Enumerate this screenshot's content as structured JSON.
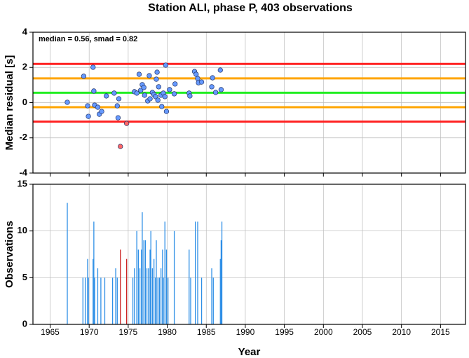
{
  "chart_data": [
    {
      "type": "scatter",
      "title": "Station ALI, phase P, 403 observations",
      "ylabel": "Median residual [s]",
      "annotation": "median = 0.56, smad = 0.82",
      "xlim": [
        1962.8,
        2018.2
      ],
      "ylim": [
        -4,
        4
      ],
      "yticks": [
        -4,
        -2,
        0,
        2,
        4
      ],
      "grid": true,
      "hlines": [
        {
          "value": 2.2,
          "color": "#ff2020"
        },
        {
          "value": 1.38,
          "color": "#ffa500"
        },
        {
          "value": 0.56,
          "color": "#22ee22"
        },
        {
          "value": -0.26,
          "color": "#ffa500"
        },
        {
          "value": -1.08,
          "color": "#ff2020"
        }
      ],
      "x": [
        1967.2,
        1969.3,
        1969.8,
        1969.9,
        1970.5,
        1970.6,
        1970.7,
        1971.1,
        1971.3,
        1971.6,
        1972.2,
        1973.2,
        1973.6,
        1973.8,
        1973.7,
        1974.0,
        1974.8,
        1975.8,
        1976.1,
        1976.4,
        1976.6,
        1976.8,
        1977.0,
        1977.1,
        1977.5,
        1977.7,
        1977.8,
        1978.1,
        1978.3,
        1978.5,
        1978.6,
        1978.7,
        1978.9,
        1978.8,
        1979.2,
        1979.3,
        1979.5,
        1979.7,
        1979.8,
        1979.9,
        1980.3,
        1981.0,
        1980.9,
        1982.8,
        1982.9,
        1983.5,
        1983.7,
        1983.9,
        1984.0,
        1984.4,
        1985.8,
        1985.7,
        1986.2,
        1986.8,
        1986.9
      ],
      "values": [
        0.02,
        1.5,
        -0.18,
        -0.78,
        2.01,
        0.66,
        -0.14,
        -0.26,
        -0.66,
        -0.5,
        0.38,
        0.54,
        -0.18,
        0.22,
        -0.86,
        -2.49,
        -1.18,
        0.62,
        0.54,
        1.61,
        0.7,
        1.02,
        0.86,
        0.42,
        0.1,
        1.53,
        0.22,
        0.58,
        0.46,
        0.34,
        1.33,
        1.73,
        0.9,
        0.14,
        0.42,
        -0.22,
        0.54,
        0.34,
        2.13,
        -0.5,
        0.74,
        1.06,
        0.5,
        0.54,
        0.38,
        1.77,
        1.61,
        1.37,
        1.13,
        1.17,
        1.41,
        0.9,
        0.58,
        1.85,
        0.74
      ],
      "colors": [
        "#6699ff",
        "#6699ff",
        "#6699ff",
        "#6699ff",
        "#6699ff",
        "#6699ff",
        "#6699ff",
        "#6699ff",
        "#6699ff",
        "#6699ff",
        "#6699ff",
        "#6699ff",
        "#6699ff",
        "#6699ff",
        "#6699ff",
        "#ff6666",
        "#ff6666",
        "#6699ff",
        "#6699ff",
        "#6699ff",
        "#6699ff",
        "#6699ff",
        "#6699ff",
        "#6699ff",
        "#6699ff",
        "#6699ff",
        "#6699ff",
        "#6699ff",
        "#6699ff",
        "#6699ff",
        "#6699ff",
        "#6699ff",
        "#6699ff",
        "#6699ff",
        "#6699ff",
        "#6699ff",
        "#6699ff",
        "#6699ff",
        "#6699ff",
        "#6699ff",
        "#6699ff",
        "#6699ff",
        "#6699ff",
        "#6699ff",
        "#6699ff",
        "#6699ff",
        "#6699ff",
        "#6699ff",
        "#6699ff",
        "#6699ff",
        "#6699ff",
        "#6699ff",
        "#6699ff",
        "#6699ff",
        "#6699ff"
      ]
    },
    {
      "type": "bar",
      "xlabel": "Year",
      "ylabel": "Observations",
      "xlim": [
        1962.8,
        2018.2
      ],
      "xticks": [
        1965,
        1970,
        1975,
        1980,
        1985,
        1990,
        1995,
        2000,
        2005,
        2010,
        2015
      ],
      "ylim": [
        0,
        15
      ],
      "yticks": [
        0,
        5,
        10,
        15
      ],
      "grid": true,
      "x": [
        1967.2,
        1969.2,
        1969.5,
        1969.8,
        1969.9,
        1970.5,
        1970.6,
        1970.7,
        1971.1,
        1971.5,
        1972.0,
        1973.0,
        1973.4,
        1973.6,
        1974.0,
        1974.8,
        1975.6,
        1975.8,
        1976.1,
        1976.3,
        1976.5,
        1976.7,
        1976.8,
        1977.0,
        1977.2,
        1977.4,
        1977.6,
        1977.8,
        1977.9,
        1978.1,
        1978.3,
        1978.5,
        1978.6,
        1978.8,
        1979.0,
        1979.2,
        1979.4,
        1979.5,
        1979.7,
        1979.9,
        1980.1,
        1980.9,
        1982.8,
        1983.0,
        1983.6,
        1983.9,
        1984.4,
        1985.7,
        1985.9,
        1986.8,
        1986.9,
        1987.0
      ],
      "values": [
        13,
        5,
        5,
        7,
        5,
        7,
        11,
        5,
        6,
        5,
        5,
        5,
        6,
        5,
        8,
        7,
        5,
        6,
        10,
        8,
        6,
        8,
        12,
        9,
        9,
        6,
        6,
        8,
        10,
        6,
        7,
        5,
        9,
        5,
        5,
        6,
        8,
        5,
        11,
        8,
        5,
        10,
        8,
        5,
        11,
        11,
        5,
        6,
        5,
        7,
        9,
        11
      ],
      "colors": [
        "#2e8fe6",
        "#2e8fe6",
        "#2e8fe6",
        "#2e8fe6",
        "#2e8fe6",
        "#2e8fe6",
        "#2e8fe6",
        "#2e8fe6",
        "#2e8fe6",
        "#2e8fe6",
        "#2e8fe6",
        "#2e8fe6",
        "#2e8fe6",
        "#2e8fe6",
        "#cc2222",
        "#cc2222",
        "#2e8fe6",
        "#2e8fe6",
        "#2e8fe6",
        "#2e8fe6",
        "#2e8fe6",
        "#2e8fe6",
        "#2e8fe6",
        "#2e8fe6",
        "#2e8fe6",
        "#2e8fe6",
        "#2e8fe6",
        "#2e8fe6",
        "#2e8fe6",
        "#2e8fe6",
        "#2e8fe6",
        "#2e8fe6",
        "#2e8fe6",
        "#2e8fe6",
        "#2e8fe6",
        "#2e8fe6",
        "#2e8fe6",
        "#2e8fe6",
        "#2e8fe6",
        "#2e8fe6",
        "#2e8fe6",
        "#2e8fe6",
        "#2e8fe6",
        "#2e8fe6",
        "#2e8fe6",
        "#2e8fe6",
        "#2e8fe6",
        "#2e8fe6",
        "#2e8fe6",
        "#2e8fe6",
        "#2e8fe6",
        "#2e8fe6"
      ]
    }
  ]
}
